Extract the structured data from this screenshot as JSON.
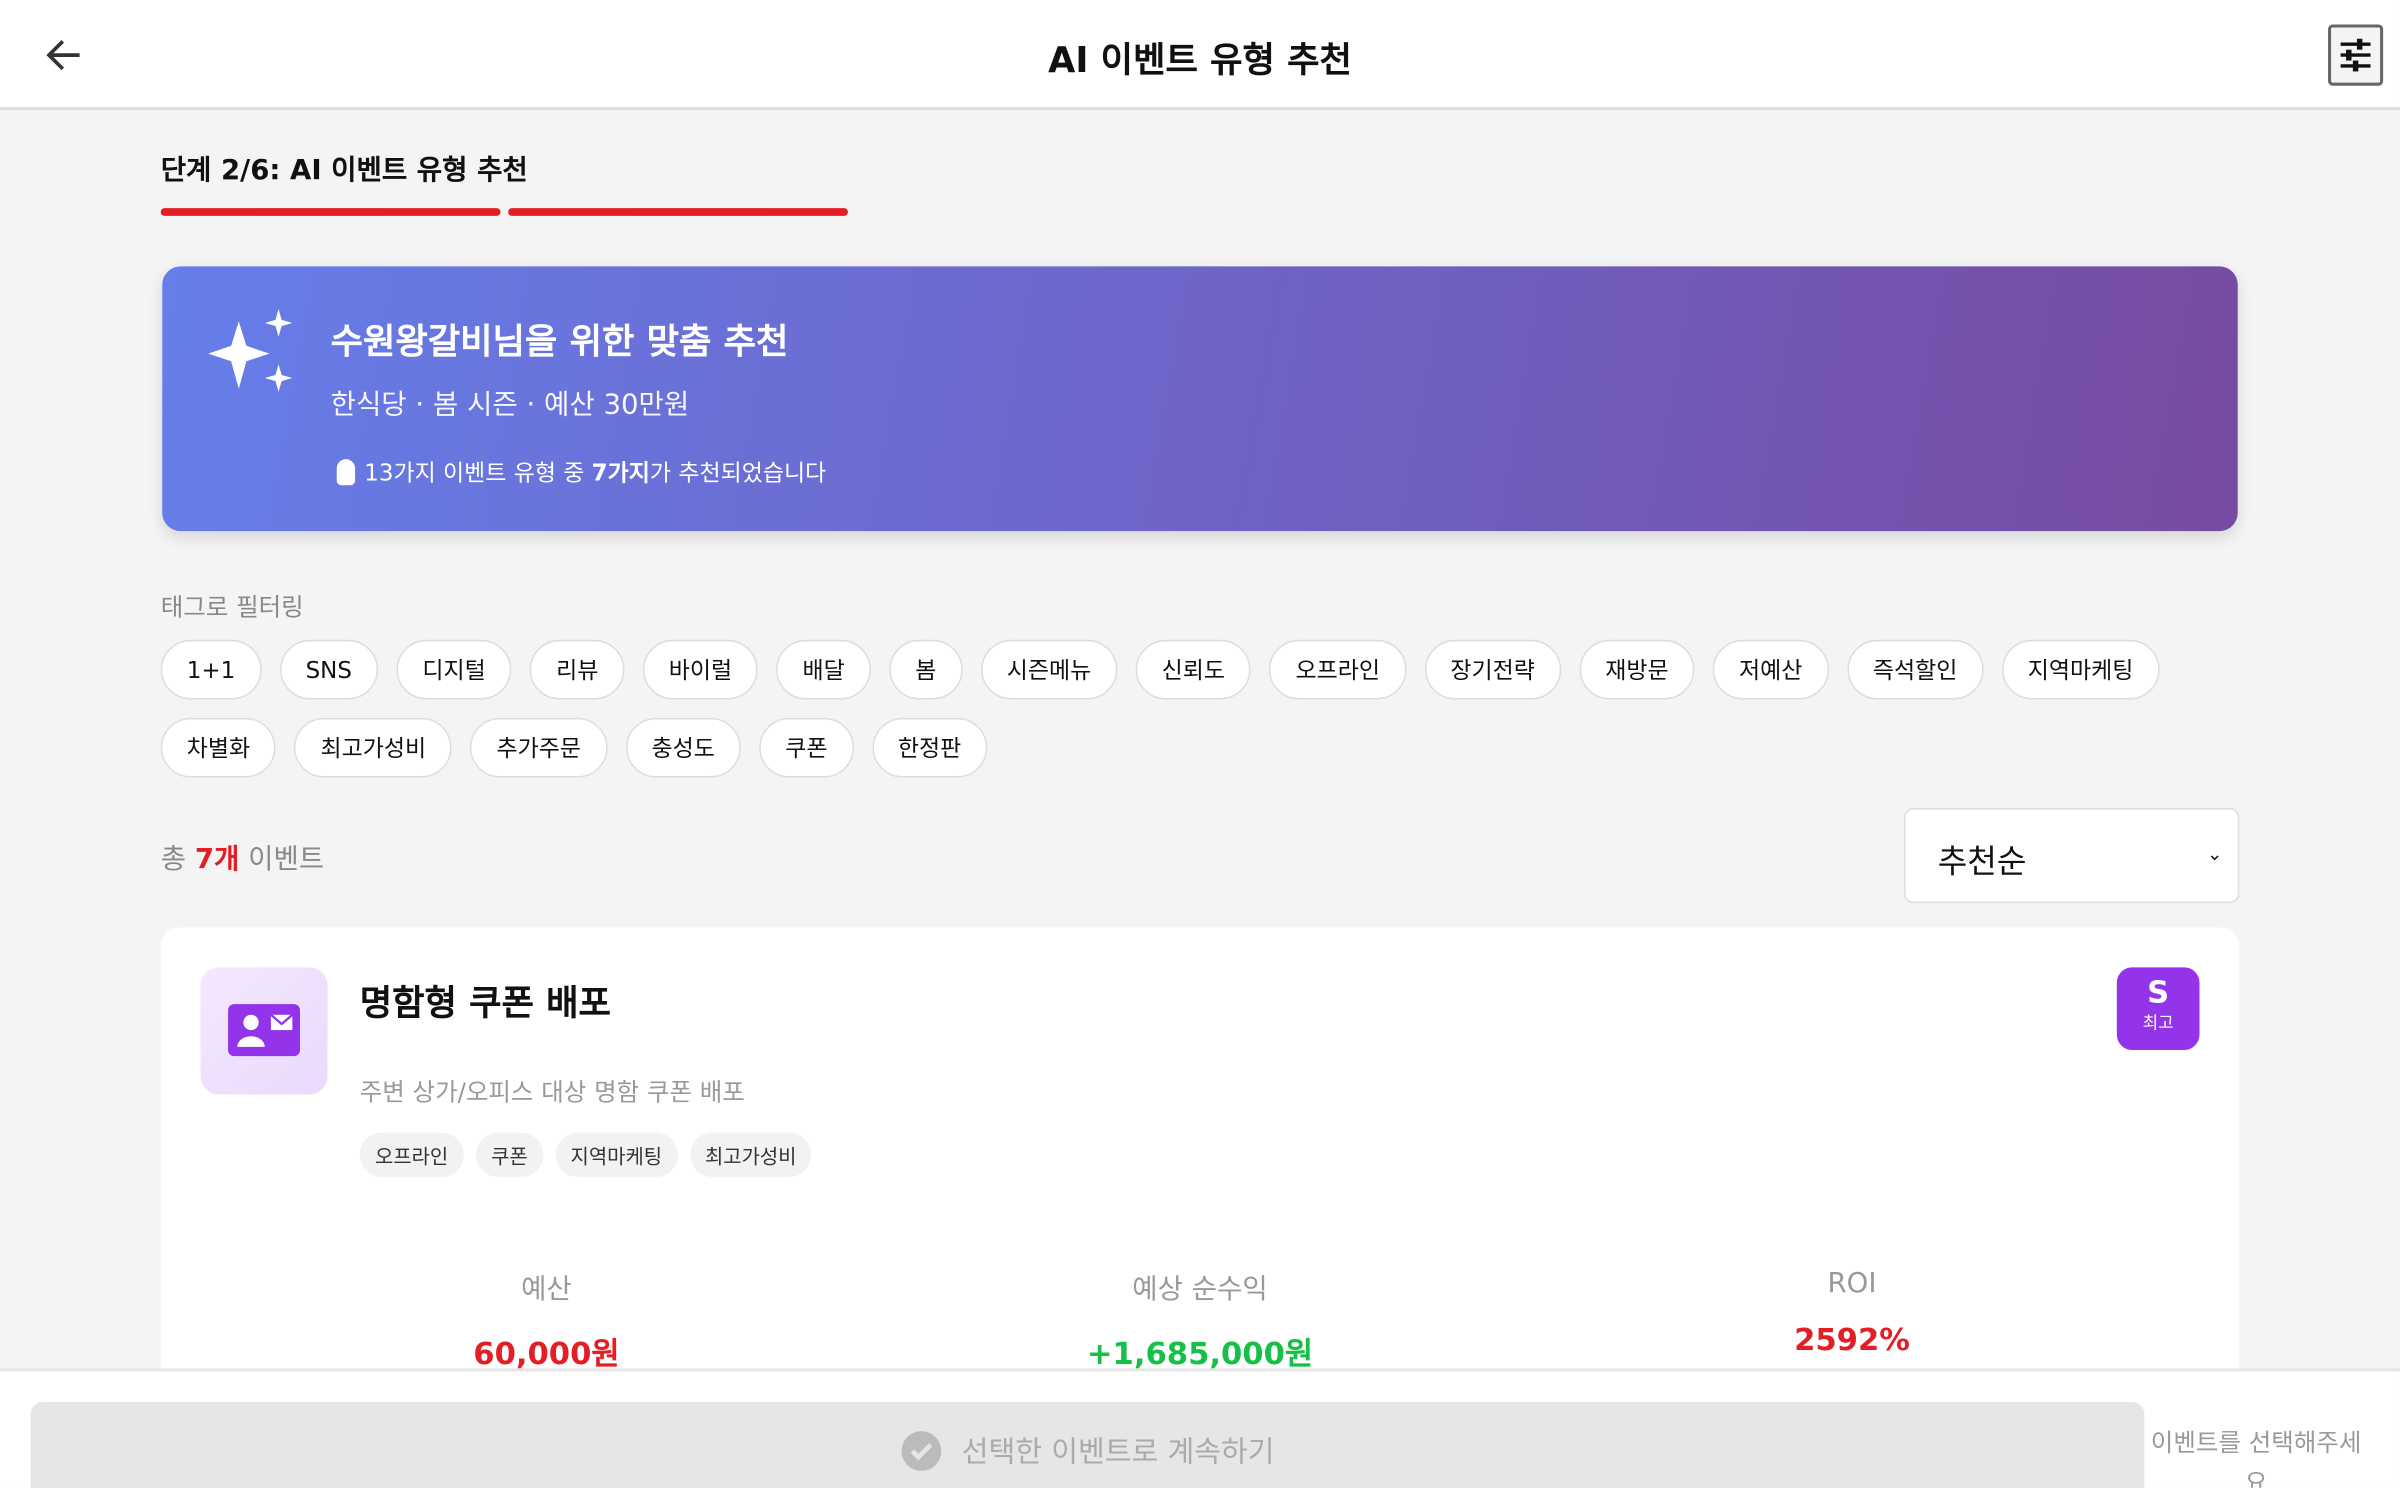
{
  "header": {
    "title": "AI 이벤트 유형 추천",
    "back_icon": "arrow-left-icon",
    "filter_icon": "sliders-icon"
  },
  "step": {
    "label": "단계 2/6: AI 이벤트 유형 추천",
    "current": 2,
    "total": 6
  },
  "banner": {
    "title": "수원왕갈비님을 위한 맞춤 추천",
    "subtitle": "한식당 · 봄 시즌 · 예산 30만원",
    "note_prefix": "13가지 이벤트 유형 중 ",
    "note_bold": "7가지",
    "note_suffix": "가 추천되었습니다",
    "gradient": [
      "#667eea",
      "#764ba2"
    ]
  },
  "filter": {
    "label": "태그로 필터링",
    "tags": [
      "1+1",
      "SNS",
      "디지털",
      "리뷰",
      "바이럴",
      "배달",
      "봄",
      "시즌메뉴",
      "신뢰도",
      "오프라인",
      "장기전략",
      "재방문",
      "저예산",
      "즉석할인",
      "지역마케팅",
      "차별화",
      "최고가성비",
      "추가주문",
      "충성도",
      "쿠폰",
      "한정판"
    ]
  },
  "results": {
    "prefix": "총 ",
    "count": "7개",
    "suffix": " 이벤트",
    "sort": "추천순"
  },
  "cards": [
    {
      "title": "명함형 쿠폰 배포",
      "description": "주변 상가/오피스 대상 명함 쿠폰 배포",
      "tags": [
        "오프라인",
        "쿠폰",
        "지역마케팅",
        "최고가성비"
      ],
      "grade": "S",
      "grade_label": "최고",
      "stats": [
        {
          "label": "예산",
          "value": "60,000원",
          "color": "#e31e24"
        },
        {
          "label": "예상 순수익",
          "value": "+1,685,000원",
          "color": "#16c047"
        },
        {
          "label": "ROI",
          "value": "2592%",
          "color": "#e31e24"
        }
      ]
    }
  ],
  "footer": {
    "cta": "선택한 이벤트로 계속하기",
    "hint": "이벤트를 선택해주세요"
  },
  "colors": {
    "accent": "#e31e24",
    "grade": "#9333ea"
  }
}
